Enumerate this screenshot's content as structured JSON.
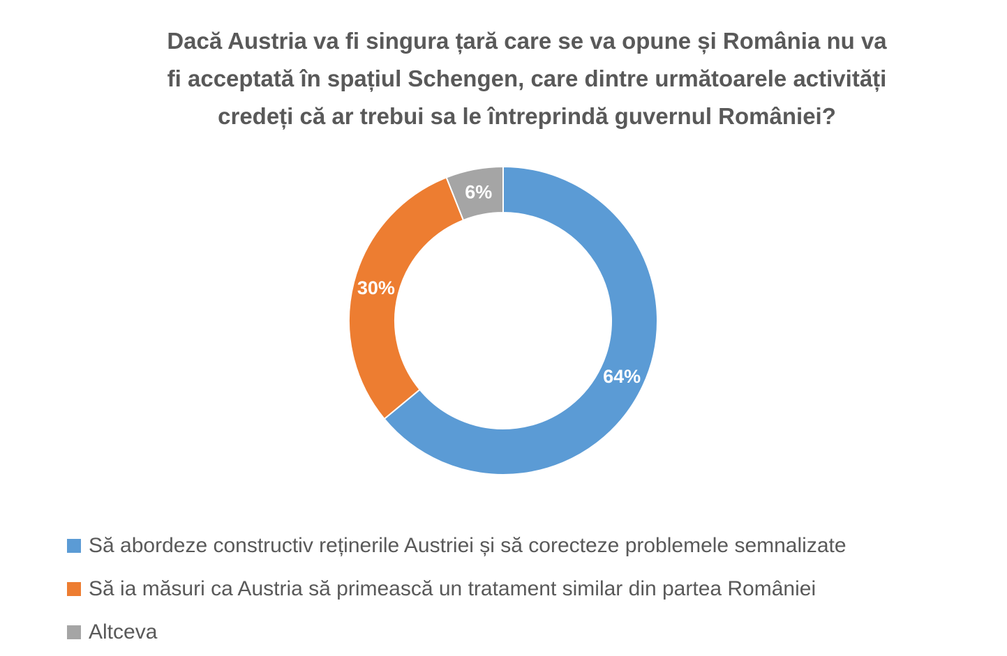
{
  "chart_data": {
    "type": "pie",
    "variant": "doughnut",
    "title_lines": [
      "Dacă Austria va fi singura țară care se va opune și România nu va",
      "fi acceptată în spațiul Schengen, care dintre următoarele activități",
      "credeți că ar trebui sa le întreprindă guvernul României?"
    ],
    "slices": [
      {
        "label": "Să abordeze constructiv reținerile Austriei și să corecteze problemele semnalizate",
        "value": 64,
        "display": "64%",
        "color": "#5B9BD5"
      },
      {
        "label": "Să ia măsuri ca Austria să primească un tratament similar din partea României",
        "value": 30,
        "display": "30%",
        "color": "#ED7D31"
      },
      {
        "label": "Altceva",
        "value": 6,
        "display": "6%",
        "color": "#A5A5A5"
      }
    ],
    "legend_position": "bottom-left",
    "start_angle": "top",
    "direction": "clockwise"
  }
}
